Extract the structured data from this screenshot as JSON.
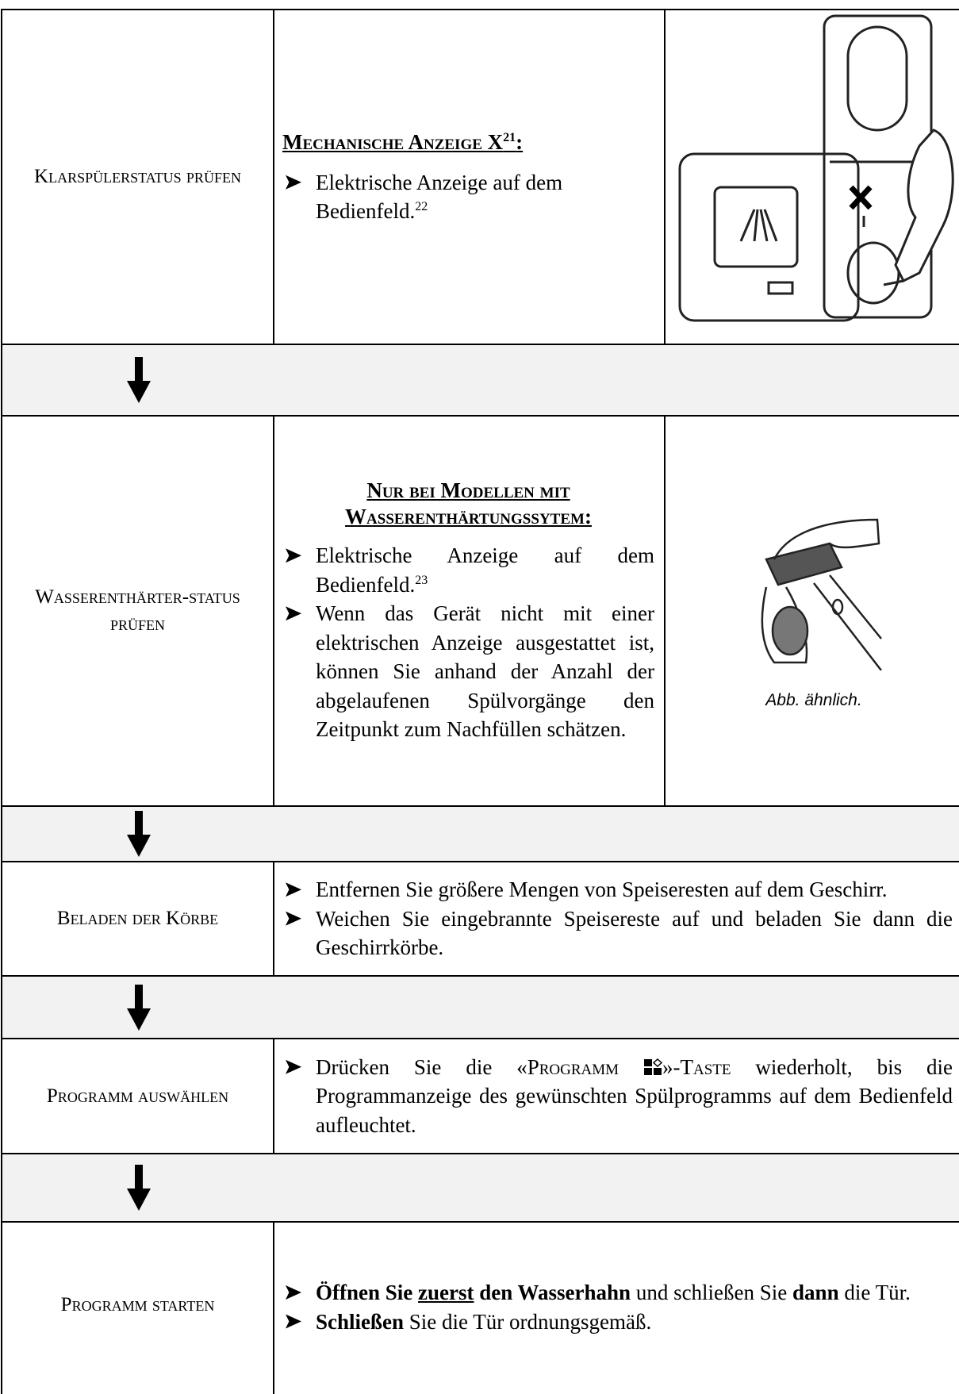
{
  "rows": [
    {
      "step": "Klarspülerstatus prüfen",
      "heading": [
        "Mechanische Anzeige X",
        "21",
        ":"
      ],
      "bullets": [
        [
          "Elektrische Anzeige auf dem Bedienfeld.",
          "22"
        ]
      ]
    },
    {
      "step": "Wasserenthärter-status prüfen",
      "heading": [
        "Nur bei Modellen mit Wasserenthärtungssytem:"
      ],
      "bullets": [
        [
          "Elektrische Anzeige auf dem Bedienfeld.",
          "23"
        ],
        [
          "Wenn das Gerät nicht mit einer elektrischen Anzeige ausgestattet ist, können Sie anhand der Anzahl der abgelaufenen Spülvorgänge den Zeitpunkt zum Nachfüllen schätzen."
        ]
      ],
      "caption": "Abb. ähnlich."
    },
    {
      "step": "Beladen der Körbe",
      "bullets": [
        [
          "Entfernen Sie größere Mengen von Speiseresten auf dem Geschirr."
        ],
        [
          "Weichen Sie eingebrannte Speisereste auf und beladen Sie dann die Geschirrkörbe."
        ]
      ]
    },
    {
      "step": "Programm auswählen",
      "bullets": [
        [
          "Drücken Sie die «",
          "Programm",
          "»-",
          "Taste",
          " wiederholt, bis die Programmanzeige des gewünschten Spülprogramms auf dem Bedienfeld aufleuchtet."
        ]
      ]
    },
    {
      "step": "Programm starten",
      "bullets": [
        [
          "Öffnen Sie ",
          "zuerst",
          " den Wasserhahn",
          " und schließen Sie ",
          "dann",
          " die Tür."
        ],
        [
          "Schließen",
          " Sie die Tür ordnungsgemäß."
        ]
      ]
    }
  ]
}
